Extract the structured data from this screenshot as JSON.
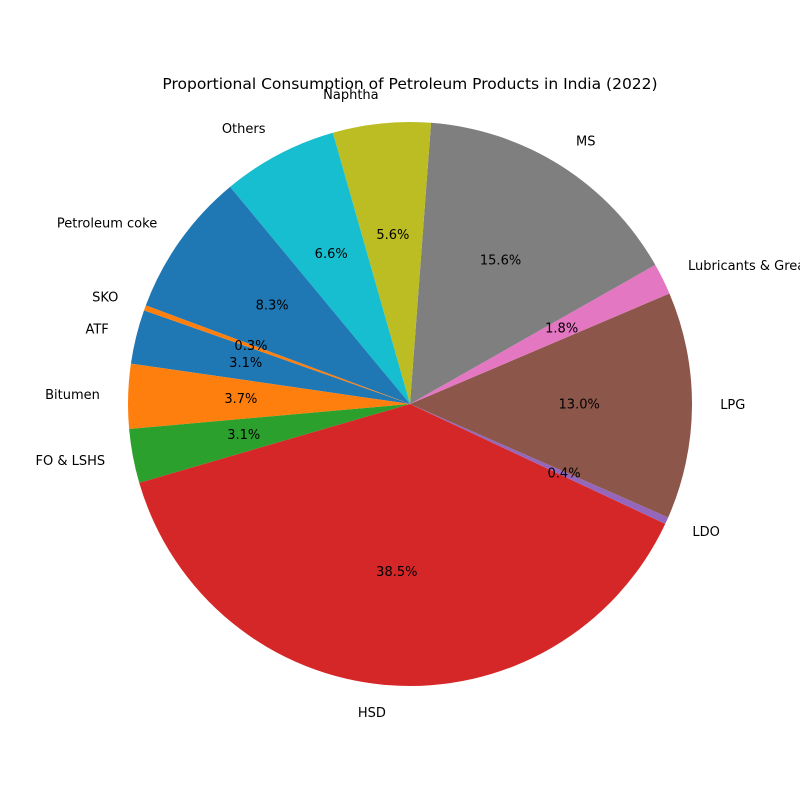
{
  "chart_data": {
    "type": "pie",
    "title": "Proportional Consumption of Petroleum Products in India (2022)",
    "start_angle_deg": 160.6,
    "direction": "counterclockwise",
    "slices": [
      {
        "label": "ATF",
        "value": 3.1,
        "pct_text": "3.1%",
        "color": "#1f77b4"
      },
      {
        "label": "Bitumen",
        "value": 3.7,
        "pct_text": "3.7%",
        "color": "#ff7f0e"
      },
      {
        "label": "FO & LSHS",
        "value": 3.1,
        "pct_text": "3.1%",
        "color": "#2ca02c"
      },
      {
        "label": "HSD",
        "value": 38.5,
        "pct_text": "38.5%",
        "color": "#d62728"
      },
      {
        "label": "LDO",
        "value": 0.4,
        "pct_text": "0.4%",
        "color": "#9467bd"
      },
      {
        "label": "LPG",
        "value": 13.0,
        "pct_text": "13.0%",
        "color": "#8c564b"
      },
      {
        "label": "Lubricants & Greases",
        "value": 1.8,
        "pct_text": "1.8%",
        "color": "#e377c2"
      },
      {
        "label": "MS",
        "value": 15.6,
        "pct_text": "15.6%",
        "color": "#7f7f7f"
      },
      {
        "label": "Naphtha",
        "value": 5.6,
        "pct_text": "5.6%",
        "color": "#bcbd22"
      },
      {
        "label": "Others",
        "value": 6.6,
        "pct_text": "6.6%",
        "color": "#17becf"
      },
      {
        "label": "Petroleum coke",
        "value": 8.3,
        "pct_text": "8.3%",
        "color": "#1f77b4"
      },
      {
        "label": "SKO",
        "value": 0.3,
        "pct_text": "0.3%",
        "color": "#ff7f0e"
      }
    ]
  }
}
